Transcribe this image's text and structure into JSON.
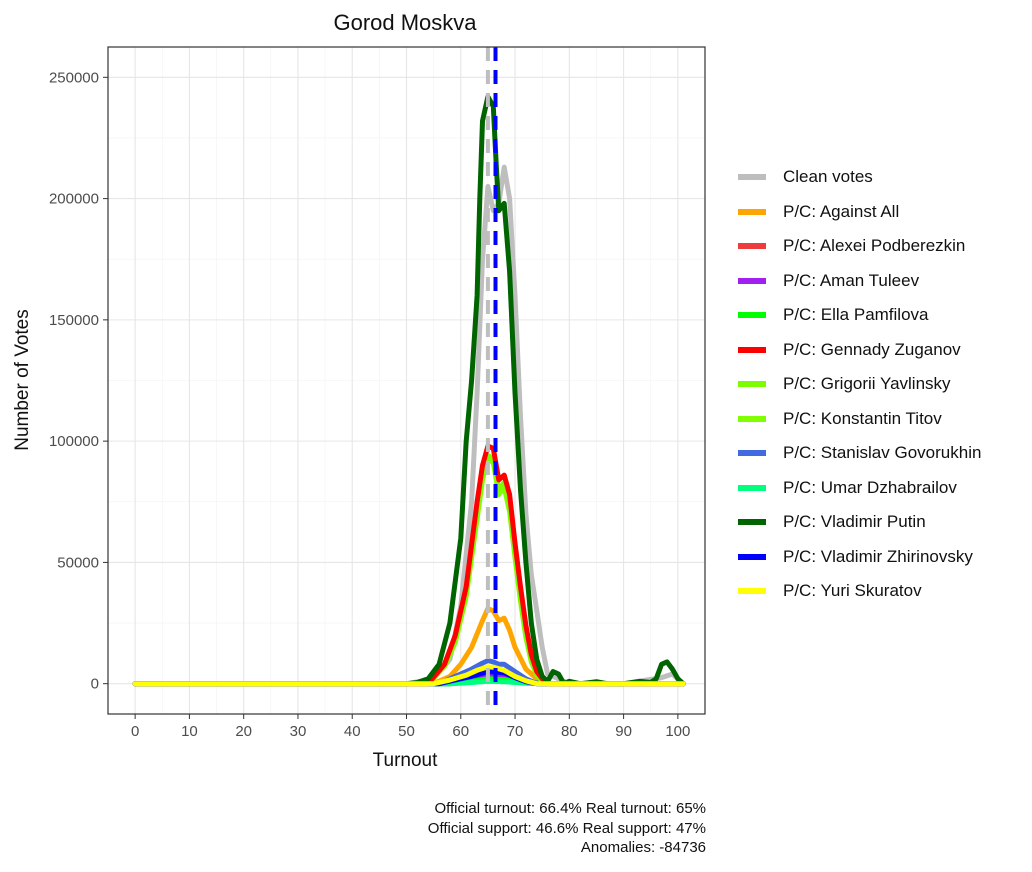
{
  "chart_data": {
    "type": "line",
    "title": "Gorod Moskva",
    "xlabel": "Turnout",
    "ylabel": "Number of Votes",
    "xlim": [
      -5,
      105
    ],
    "ylim": [
      -12500,
      262500
    ],
    "x_ticks": [
      0,
      10,
      20,
      30,
      40,
      50,
      60,
      70,
      80,
      90,
      100
    ],
    "y_ticks": [
      0,
      50000,
      100000,
      150000,
      200000,
      250000
    ],
    "grid": true,
    "legend_position": "right",
    "vlines": [
      {
        "x": 65,
        "color": "#bebebe",
        "dash": "dashed",
        "label": "Real turnout"
      },
      {
        "x": 66.4,
        "color": "#0000ff",
        "dash": "dashed",
        "label": "Official turnout"
      }
    ],
    "series": [
      {
        "name": "Clean votes",
        "color": "#bebebe",
        "points": [
          [
            0,
            0
          ],
          [
            50,
            0
          ],
          [
            55,
            2000
          ],
          [
            58,
            10000
          ],
          [
            60,
            32000
          ],
          [
            62,
            75000
          ],
          [
            63,
            120000
          ],
          [
            64,
            175000
          ],
          [
            65,
            205000
          ],
          [
            66,
            195000
          ],
          [
            67,
            198000
          ],
          [
            68,
            213000
          ],
          [
            69,
            200000
          ],
          [
            70,
            160000
          ],
          [
            71,
            110000
          ],
          [
            72,
            70000
          ],
          [
            73,
            45000
          ],
          [
            74,
            30000
          ],
          [
            75,
            15000
          ],
          [
            76,
            4000
          ],
          [
            78,
            2000
          ],
          [
            80,
            0
          ],
          [
            90,
            0
          ],
          [
            97,
            2500
          ],
          [
            99,
            4000
          ],
          [
            101,
            0
          ]
        ]
      },
      {
        "name": "P/C: Against All",
        "color": "#ffa500",
        "points": [
          [
            0,
            0
          ],
          [
            55,
            0
          ],
          [
            58,
            3000
          ],
          [
            60,
            8000
          ],
          [
            62,
            15000
          ],
          [
            64,
            26000
          ],
          [
            65,
            31000
          ],
          [
            66,
            30000
          ],
          [
            67,
            26000
          ],
          [
            68,
            27000
          ],
          [
            69,
            22000
          ],
          [
            70,
            15000
          ],
          [
            72,
            6000
          ],
          [
            74,
            2000
          ],
          [
            76,
            0
          ],
          [
            101,
            0
          ]
        ]
      },
      {
        "name": "P/C: Alexei Podberezkin",
        "color": "#ee3b3b",
        "points": [
          [
            0,
            0
          ],
          [
            58,
            0
          ],
          [
            62,
            800
          ],
          [
            65,
            1500
          ],
          [
            68,
            1200
          ],
          [
            72,
            300
          ],
          [
            76,
            0
          ],
          [
            101,
            0
          ]
        ]
      },
      {
        "name": "P/C: Aman Tuleev",
        "color": "#a020f0",
        "points": [
          [
            0,
            0
          ],
          [
            58,
            0
          ],
          [
            62,
            1500
          ],
          [
            65,
            3000
          ],
          [
            68,
            2500
          ],
          [
            72,
            800
          ],
          [
            76,
            0
          ],
          [
            101,
            0
          ]
        ]
      },
      {
        "name": "P/C: Ella Pamfilova",
        "color": "#00ff00",
        "points": [
          [
            0,
            0
          ],
          [
            58,
            0
          ],
          [
            62,
            1000
          ],
          [
            65,
            2000
          ],
          [
            68,
            1700
          ],
          [
            72,
            500
          ],
          [
            76,
            0
          ],
          [
            101,
            0
          ]
        ]
      },
      {
        "name": "P/C: Gennady Zuganov",
        "color": "#ff0000",
        "points": [
          [
            0,
            0
          ],
          [
            54,
            0
          ],
          [
            57,
            8000
          ],
          [
            59,
            20000
          ],
          [
            61,
            40000
          ],
          [
            63,
            75000
          ],
          [
            64,
            90000
          ],
          [
            65,
            98000
          ],
          [
            66,
            97000
          ],
          [
            67,
            84000
          ],
          [
            68,
            86000
          ],
          [
            69,
            78000
          ],
          [
            70,
            58000
          ],
          [
            71,
            40000
          ],
          [
            72,
            24000
          ],
          [
            73,
            12000
          ],
          [
            74,
            5000
          ],
          [
            75,
            2000
          ],
          [
            76,
            0
          ],
          [
            101,
            0
          ]
        ]
      },
      {
        "name": "P/C: Grigorii Yavlinsky",
        "color": "#7cfc00",
        "points": [
          [
            0,
            0
          ],
          [
            54,
            0
          ],
          [
            57,
            8000
          ],
          [
            59,
            18000
          ],
          [
            61,
            37000
          ],
          [
            63,
            70000
          ],
          [
            64,
            86000
          ],
          [
            65,
            94000
          ],
          [
            66,
            93000
          ],
          [
            67,
            80000
          ],
          [
            68,
            83000
          ],
          [
            69,
            73000
          ],
          [
            70,
            54000
          ],
          [
            71,
            36000
          ],
          [
            72,
            20000
          ],
          [
            73,
            10000
          ],
          [
            74,
            4000
          ],
          [
            75,
            1000
          ],
          [
            76,
            0
          ],
          [
            101,
            0
          ]
        ]
      },
      {
        "name": "P/C: Konstantin Titov",
        "color": "#7fff00",
        "points": [
          [
            0,
            0
          ],
          [
            54,
            0
          ],
          [
            57,
            7000
          ],
          [
            59,
            17000
          ],
          [
            61,
            36000
          ],
          [
            63,
            68000
          ],
          [
            64,
            84000
          ],
          [
            65,
            93000
          ],
          [
            66,
            91000
          ],
          [
            67,
            78000
          ],
          [
            68,
            81000
          ],
          [
            69,
            71000
          ],
          [
            70,
            52000
          ],
          [
            71,
            34000
          ],
          [
            72,
            19000
          ],
          [
            73,
            9000
          ],
          [
            74,
            3500
          ],
          [
            75,
            1000
          ],
          [
            76,
            0
          ],
          [
            101,
            0
          ]
        ]
      },
      {
        "name": "P/C: Stanislav Govorukhin",
        "color": "#4169e1",
        "points": [
          [
            0,
            0
          ],
          [
            56,
            0
          ],
          [
            59,
            3000
          ],
          [
            62,
            6000
          ],
          [
            64,
            8500
          ],
          [
            65,
            9500
          ],
          [
            66,
            9000
          ],
          [
            67,
            8000
          ],
          [
            68,
            8000
          ],
          [
            70,
            5000
          ],
          [
            72,
            2000
          ],
          [
            74,
            0
          ],
          [
            101,
            0
          ]
        ]
      },
      {
        "name": "P/C: Umar Dzhabrailov",
        "color": "#00ff7f",
        "points": [
          [
            0,
            0
          ],
          [
            58,
            0
          ],
          [
            62,
            500
          ],
          [
            65,
            1000
          ],
          [
            68,
            800
          ],
          [
            72,
            200
          ],
          [
            76,
            0
          ],
          [
            101,
            0
          ]
        ]
      },
      {
        "name": "P/C: Vladimir Putin",
        "color": "#006400",
        "points": [
          [
            0,
            0
          ],
          [
            50,
            0
          ],
          [
            52,
            500
          ],
          [
            54,
            2000
          ],
          [
            56,
            8000
          ],
          [
            58,
            25000
          ],
          [
            60,
            60000
          ],
          [
            61,
            100000
          ],
          [
            62,
            125000
          ],
          [
            63,
            160000
          ],
          [
            63.5,
            200000
          ],
          [
            64,
            232000
          ],
          [
            65,
            242000
          ],
          [
            66,
            238000
          ],
          [
            66.5,
            215000
          ],
          [
            67,
            195000
          ],
          [
            68,
            198000
          ],
          [
            69,
            170000
          ],
          [
            70,
            120000
          ],
          [
            71,
            80000
          ],
          [
            72,
            50000
          ],
          [
            73,
            25000
          ],
          [
            74,
            10000
          ],
          [
            75,
            3000
          ],
          [
            76,
            1000
          ],
          [
            77,
            5000
          ],
          [
            78,
            4000
          ],
          [
            79,
            0
          ],
          [
            80,
            1000
          ],
          [
            82,
            0
          ],
          [
            85,
            800
          ],
          [
            87,
            0
          ],
          [
            90,
            0
          ],
          [
            93,
            1000
          ],
          [
            95,
            500
          ],
          [
            96,
            2000
          ],
          [
            97,
            8000
          ],
          [
            98,
            9000
          ],
          [
            99,
            6000
          ],
          [
            100,
            2000
          ],
          [
            101,
            0
          ]
        ]
      },
      {
        "name": "P/C: Vladimir Zhirinovsky",
        "color": "#0000ff",
        "points": [
          [
            0,
            0
          ],
          [
            56,
            0
          ],
          [
            59,
            1500
          ],
          [
            62,
            3000
          ],
          [
            65,
            5000
          ],
          [
            68,
            4500
          ],
          [
            70,
            2500
          ],
          [
            72,
            800
          ],
          [
            74,
            0
          ],
          [
            101,
            0
          ]
        ]
      },
      {
        "name": "P/C: Yuri Skuratov",
        "color": "#ffff00",
        "points": [
          [
            0,
            0
          ],
          [
            55,
            0
          ],
          [
            58,
            1500
          ],
          [
            61,
            3500
          ],
          [
            63,
            5500
          ],
          [
            65,
            7000
          ],
          [
            66,
            6800
          ],
          [
            68,
            5500
          ],
          [
            70,
            3000
          ],
          [
            72,
            1200
          ],
          [
            74,
            0
          ],
          [
            101,
            0
          ]
        ]
      }
    ]
  },
  "caption": {
    "line1": "Official turnout: 66.4%    Real turnout: 65%",
    "line2": "Official support: 46.6%    Real support: 47%",
    "line3": "Anomalies: -84736"
  }
}
